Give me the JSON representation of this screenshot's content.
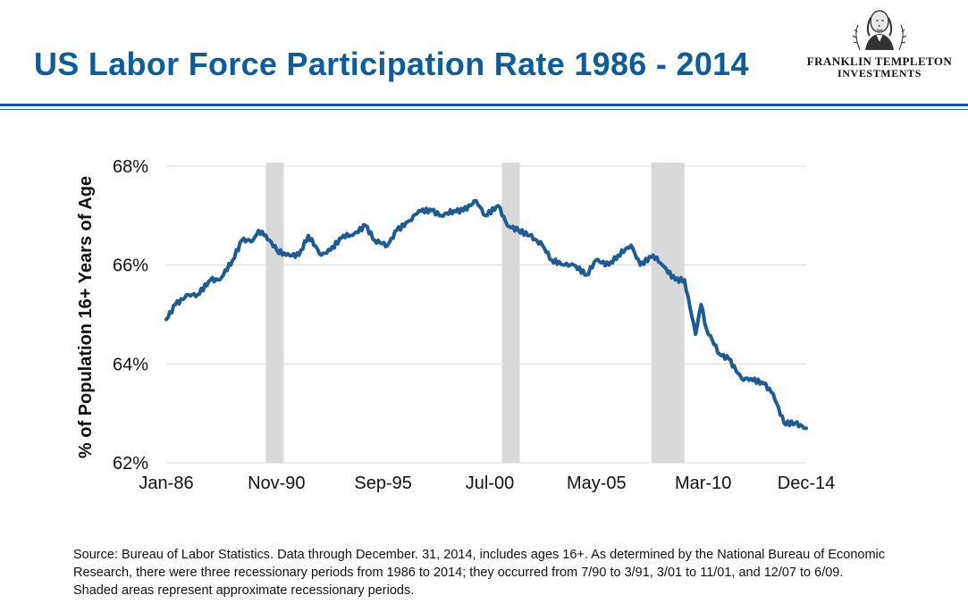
{
  "header": {
    "title": "US Labor Force Participation Rate 1986 - 2014"
  },
  "logo": {
    "line1": "FRANKLIN TEMPLETON",
    "line2": "INVESTMENTS",
    "icon": "benjamin-franklin-portrait-icon"
  },
  "colors": {
    "title": "#0d5c9c",
    "line": "#1c5c96",
    "recession": "#d9d9d9",
    "grid": "#d9d9d9"
  },
  "chart_data": {
    "type": "line",
    "title": "",
    "xlabel": "",
    "ylabel": "% of Population 16+ Years of Age",
    "ylim": [
      62,
      68
    ],
    "xlim": [
      "1986-01",
      "2014-12"
    ],
    "yticks": [
      "62%",
      "64%",
      "66%",
      "68%"
    ],
    "xticks": [
      "Jan-86",
      "Nov-90",
      "Sep-95",
      "Jul-00",
      "May-05",
      "Mar-10",
      "Dec-14"
    ],
    "grid": true,
    "recessions": [
      {
        "start": "1990-07",
        "end": "1991-03"
      },
      {
        "start": "2001-03",
        "end": "2001-11"
      },
      {
        "start": "2007-12",
        "end": "2009-06"
      }
    ],
    "series": [
      {
        "values": [
          {
            "x": "1986-01",
            "y": 64.9
          },
          {
            "x": "1986-06",
            "y": 65.2
          },
          {
            "x": "1987-01",
            "y": 65.4
          },
          {
            "x": "1987-06",
            "y": 65.4
          },
          {
            "x": "1988-01",
            "y": 65.7
          },
          {
            "x": "1988-06",
            "y": 65.7
          },
          {
            "x": "1989-01",
            "y": 66.1
          },
          {
            "x": "1989-06",
            "y": 66.5
          },
          {
            "x": "1989-12",
            "y": 66.5
          },
          {
            "x": "1990-03",
            "y": 66.7
          },
          {
            "x": "1990-06",
            "y": 66.6
          },
          {
            "x": "1990-09",
            "y": 66.5
          },
          {
            "x": "1991-01",
            "y": 66.3
          },
          {
            "x": "1991-06",
            "y": 66.2
          },
          {
            "x": "1992-01",
            "y": 66.2
          },
          {
            "x": "1992-06",
            "y": 66.6
          },
          {
            "x": "1993-01",
            "y": 66.2
          },
          {
            "x": "1993-06",
            "y": 66.3
          },
          {
            "x": "1994-01",
            "y": 66.6
          },
          {
            "x": "1994-06",
            "y": 66.6
          },
          {
            "x": "1995-01",
            "y": 66.8
          },
          {
            "x": "1995-06",
            "y": 66.5
          },
          {
            "x": "1996-01",
            "y": 66.4
          },
          {
            "x": "1996-06",
            "y": 66.7
          },
          {
            "x": "1997-01",
            "y": 66.9
          },
          {
            "x": "1997-06",
            "y": 67.1
          },
          {
            "x": "1998-01",
            "y": 67.1
          },
          {
            "x": "1998-06",
            "y": 67.0
          },
          {
            "x": "1999-01",
            "y": 67.1
          },
          {
            "x": "1999-06",
            "y": 67.1
          },
          {
            "x": "2000-01",
            "y": 67.3
          },
          {
            "x": "2000-06",
            "y": 67.0
          },
          {
            "x": "2001-01",
            "y": 67.2
          },
          {
            "x": "2001-06",
            "y": 66.8
          },
          {
            "x": "2001-12",
            "y": 66.7
          },
          {
            "x": "2002-06",
            "y": 66.6
          },
          {
            "x": "2003-01",
            "y": 66.4
          },
          {
            "x": "2003-06",
            "y": 66.1
          },
          {
            "x": "2004-01",
            "y": 66.0
          },
          {
            "x": "2004-06",
            "y": 66.0
          },
          {
            "x": "2005-01",
            "y": 65.8
          },
          {
            "x": "2005-06",
            "y": 66.1
          },
          {
            "x": "2006-01",
            "y": 66.0
          },
          {
            "x": "2006-06",
            "y": 66.2
          },
          {
            "x": "2007-01",
            "y": 66.4
          },
          {
            "x": "2007-06",
            "y": 66.0
          },
          {
            "x": "2008-01",
            "y": 66.2
          },
          {
            "x": "2008-06",
            "y": 66.0
          },
          {
            "x": "2009-01",
            "y": 65.7
          },
          {
            "x": "2009-06",
            "y": 65.7
          },
          {
            "x": "2009-12",
            "y": 64.6
          },
          {
            "x": "2010-03",
            "y": 65.2
          },
          {
            "x": "2010-06",
            "y": 64.7
          },
          {
            "x": "2011-01",
            "y": 64.2
          },
          {
            "x": "2011-06",
            "y": 64.1
          },
          {
            "x": "2012-01",
            "y": 63.7
          },
          {
            "x": "2012-06",
            "y": 63.7
          },
          {
            "x": "2013-01",
            "y": 63.6
          },
          {
            "x": "2013-06",
            "y": 63.4
          },
          {
            "x": "2013-12",
            "y": 62.8
          },
          {
            "x": "2014-06",
            "y": 62.8
          },
          {
            "x": "2014-12",
            "y": 62.7
          }
        ]
      }
    ]
  },
  "footnote": {
    "source": "Source: Bureau of Labor Statistics.  Data through December. 31, 2014, includes ages 16+. As determined by the National Bureau of Economic Research, there were three recessionary periods from 1986 to 2014; they occurred from 7/90 to 3/91, 3/01 to 11/01, and 12/07 to 6/09. Shaded areas represent approximate recessionary periods."
  }
}
